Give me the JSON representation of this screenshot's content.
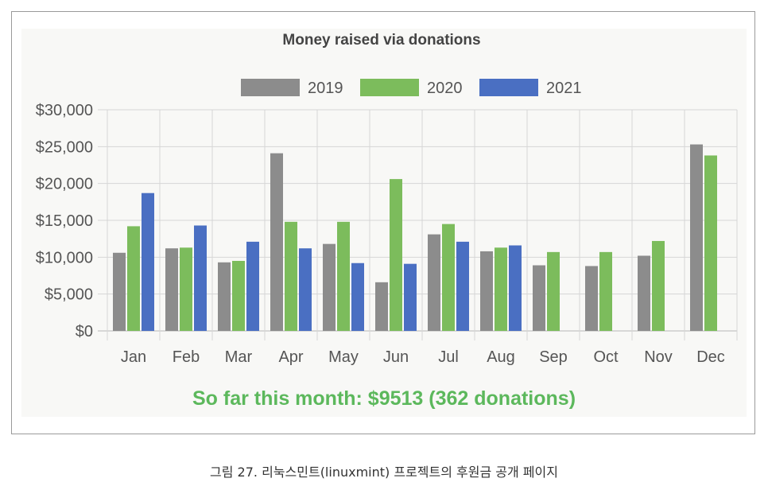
{
  "chart_data": {
    "type": "bar",
    "title": "Money raised via donations",
    "categories": [
      "Jan",
      "Feb",
      "Mar",
      "Apr",
      "May",
      "Jun",
      "Jul",
      "Aug",
      "Sep",
      "Oct",
      "Nov",
      "Dec"
    ],
    "series": [
      {
        "name": "2019",
        "color": "#8c8c8c",
        "values": [
          10600,
          11200,
          9300,
          24100,
          11800,
          6600,
          13100,
          10800,
          8900,
          8800,
          10200,
          25300
        ]
      },
      {
        "name": "2020",
        "color": "#7cbc5c",
        "values": [
          14200,
          11300,
          9500,
          14800,
          14800,
          20600,
          14500,
          11300,
          10700,
          10700,
          12200,
          23800
        ]
      },
      {
        "name": "2021",
        "color": "#4a6fc2",
        "values": [
          18700,
          14300,
          12100,
          11200,
          9200,
          9100,
          12100,
          11600,
          null,
          null,
          null,
          null
        ]
      }
    ],
    "y_ticks": [
      "$0",
      "$5,000",
      "$10,000",
      "$15,000",
      "$20,000",
      "$25,000",
      "$30,000"
    ],
    "ylim": [
      0,
      30000
    ],
    "grid": true,
    "legend_position": "top-center"
  },
  "footer": {
    "status_text": "So far this month: $9513 (362 donations)"
  },
  "caption": {
    "text": "그림 27. 리눅스민트(linuxmint) 프로젝트의 후원금 공개 페이지"
  }
}
